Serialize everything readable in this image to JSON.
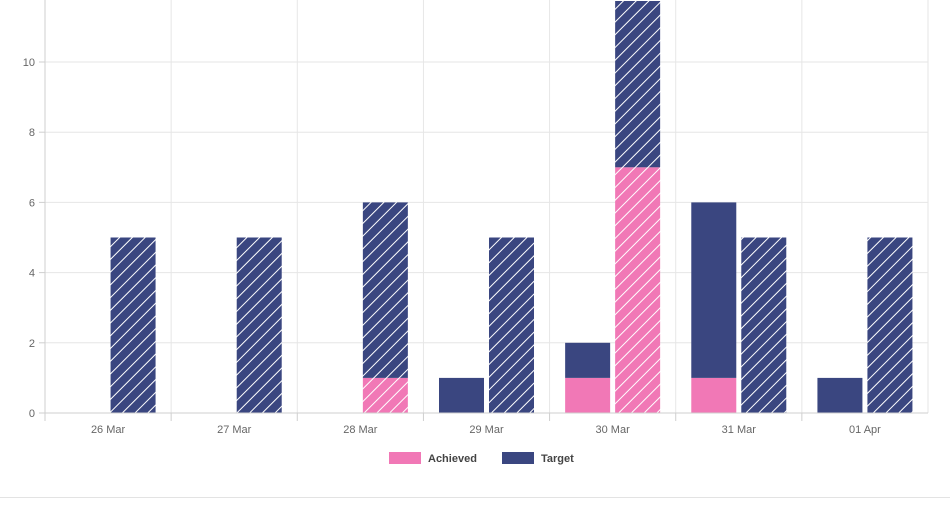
{
  "chart_data": {
    "type": "bar",
    "stacked": true,
    "categories": [
      "26 Mar",
      "27 Mar",
      "28 Mar",
      "29 Mar",
      "30 Mar",
      "31 Mar",
      "01 Apr"
    ],
    "stacks": [
      "actual",
      "planned"
    ],
    "series": [
      {
        "name": "Achieved",
        "color": "#f178b6",
        "values": [
          0,
          0,
          0,
          0,
          1,
          1,
          0
        ],
        "stack": "actual",
        "pattern": "solid"
      },
      {
        "name": "Target",
        "color": "#3a4680",
        "values": [
          0,
          0,
          0,
          1,
          1,
          5,
          1
        ],
        "stack": "actual",
        "pattern": "solid"
      },
      {
        "name": "Achieved",
        "color": "#f178b6",
        "values": [
          0,
          0,
          1,
          0,
          7,
          0,
          0
        ],
        "stack": "planned",
        "pattern": "hatched"
      },
      {
        "name": "Target",
        "color": "#3a4680",
        "values": [
          5,
          5,
          5,
          5,
          5,
          5,
          5
        ],
        "stack": "planned",
        "pattern": "hatched"
      }
    ],
    "legend": {
      "position": "bottom",
      "items": [
        {
          "label": "Achieved",
          "color": "#f178b6"
        },
        {
          "label": "Target",
          "color": "#3a4680"
        }
      ]
    },
    "ylim": [
      0,
      12
    ],
    "yticks": [
      0,
      2,
      4,
      6,
      8,
      10
    ],
    "grid": true,
    "title": "",
    "xlabel": "",
    "ylabel": ""
  }
}
